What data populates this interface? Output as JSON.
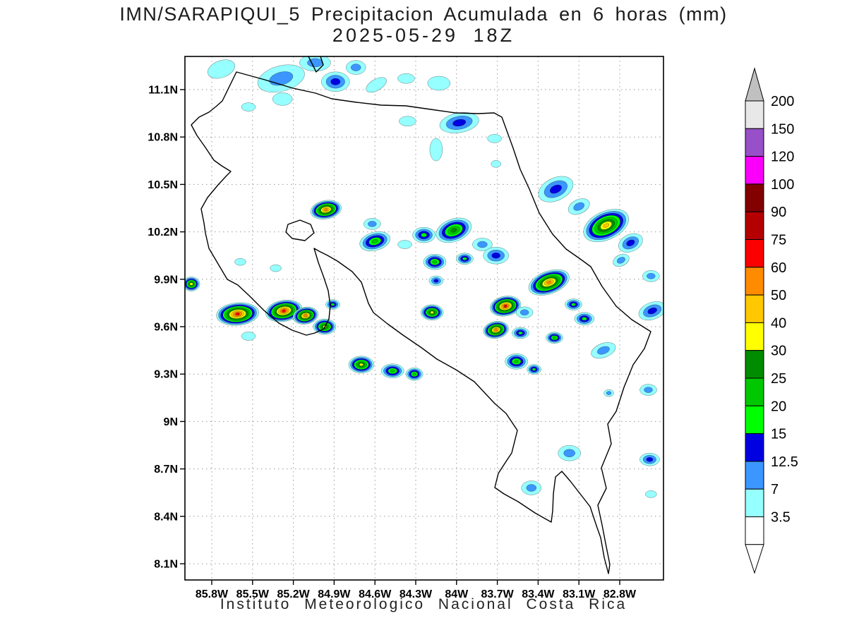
{
  "header": {
    "title": "IMN/SARAPIQUI_5 Precipitacion Acumulada en 6 horas (mm)",
    "subtitle": "2025-05-29 18Z"
  },
  "footer": {
    "text": "Instituto Meteorologico Nacional Costa Rica"
  },
  "axes": {
    "lat_labels": [
      "11.1N",
      "10.8N",
      "10.5N",
      "10.2N",
      "9.9N",
      "9.6N",
      "9.3N",
      "9N",
      "8.7N",
      "8.4N",
      "8.1N"
    ],
    "lon_labels": [
      "85.8W",
      "85.5W",
      "85.2W",
      "84.9W",
      "84.6W",
      "84.3W",
      "84W",
      "83.7W",
      "83.4W",
      "83.1W",
      "82.8W"
    ]
  },
  "colorbar": {
    "tick_labels": [
      "200",
      "150",
      "120",
      "100",
      "90",
      "75",
      "60",
      "50",
      "40",
      "30",
      "25",
      "20",
      "15",
      "12.5",
      "7",
      "3.5"
    ],
    "segment_colors_top_to_bottom": [
      "#E8E8E8",
      "#9850C8",
      "#FA00FA",
      "#820000",
      "#B40000",
      "#FA0000",
      "#FF8C00",
      "#FFC800",
      "#FFFF00",
      "#008C00",
      "#00C800",
      "#00FF00",
      "#0000E0",
      "#3C96FF",
      "#96FFFF",
      "#FFFFFF"
    ],
    "above_max_color": "#C0C0C0",
    "below_min_color": "#FFFFFF"
  },
  "chart_data": {
    "type": "heatmap",
    "title": "IMN/SARAPIQUI_5 Precipitacion Acumulada en 6 horas (mm)",
    "valid_time": "2025-05-29 18Z",
    "units": "mm",
    "region": "Costa Rica",
    "lat_axis": {
      "min": 8.1,
      "max": 11.1,
      "tick_step": 0.3,
      "unit": "N"
    },
    "lon_axis": {
      "min": 82.8,
      "max": 85.8,
      "tick_step": 0.3,
      "unit": "W"
    },
    "levels_mm": [
      3.5,
      7,
      12.5,
      15,
      20,
      25,
      30,
      40,
      50,
      60,
      75,
      90,
      100,
      120,
      150,
      200
    ],
    "level_colors": [
      "#96FFFF",
      "#3C96FF",
      "#0000E0",
      "#00FF00",
      "#00C800",
      "#008C00",
      "#FFFF00",
      "#FFC800",
      "#FF8C00",
      "#FA0000",
      "#B40000",
      "#820000",
      "#FA00FA",
      "#9850C8",
      "#E8E8E8",
      "#C0C0C0"
    ],
    "cell_format": [
      "lon_W",
      "lat_N",
      "peak_mm",
      "rx_px",
      "ry_px",
      "rotation_deg"
    ],
    "cells": [
      [
        85.73,
        11.23,
        5,
        20,
        12,
        -20
      ],
      [
        85.29,
        11.17,
        10,
        34,
        18,
        -15
      ],
      [
        85.28,
        11.04,
        5,
        14,
        9,
        0
      ],
      [
        85.04,
        11.27,
        10,
        22,
        12,
        0
      ],
      [
        84.89,
        11.15,
        14,
        20,
        14,
        0
      ],
      [
        84.74,
        11.24,
        10,
        14,
        10,
        0
      ],
      [
        84.59,
        11.13,
        5,
        16,
        8,
        -30
      ],
      [
        85.53,
        10.99,
        5,
        10,
        6,
        0
      ],
      [
        84.37,
        11.17,
        5,
        12,
        7,
        0
      ],
      [
        84.13,
        11.14,
        5,
        16,
        10,
        0
      ],
      [
        84.36,
        10.9,
        5,
        12,
        7,
        0
      ],
      [
        83.98,
        10.89,
        14,
        28,
        14,
        -10
      ],
      [
        83.72,
        10.79,
        5,
        10,
        6,
        0
      ],
      [
        84.15,
        10.72,
        5,
        9,
        16,
        0
      ],
      [
        83.71,
        10.63,
        5,
        7,
        5,
        0
      ],
      [
        83.27,
        10.47,
        14,
        26,
        16,
        -25
      ],
      [
        83.1,
        10.36,
        10,
        16,
        10,
        -25
      ],
      [
        82.9,
        10.24,
        45,
        34,
        20,
        -25
      ],
      [
        82.72,
        10.13,
        14,
        18,
        12,
        -25
      ],
      [
        82.79,
        10.02,
        10,
        12,
        8,
        -25
      ],
      [
        82.57,
        9.92,
        10,
        12,
        8,
        0
      ],
      [
        82.56,
        9.7,
        14,
        20,
        12,
        -20
      ],
      [
        84.96,
        10.34,
        55,
        22,
        13,
        -10
      ],
      [
        84.62,
        10.25,
        10,
        12,
        8,
        0
      ],
      [
        84.6,
        10.14,
        22,
        22,
        13,
        -15
      ],
      [
        84.38,
        10.12,
        5,
        10,
        6,
        0
      ],
      [
        84.24,
        10.18,
        18,
        16,
        11,
        0
      ],
      [
        84.02,
        10.21,
        28,
        26,
        16,
        -20
      ],
      [
        83.81,
        10.12,
        10,
        14,
        9,
        0
      ],
      [
        84.16,
        10.01,
        22,
        16,
        11,
        0
      ],
      [
        83.94,
        10.03,
        18,
        12,
        8,
        0
      ],
      [
        83.71,
        10.05,
        14,
        18,
        12,
        0
      ],
      [
        84.15,
        9.89,
        14,
        10,
        7,
        0
      ],
      [
        84.18,
        9.69,
        35,
        16,
        11,
        0
      ],
      [
        85.95,
        9.87,
        35,
        12,
        10,
        0
      ],
      [
        85.59,
        10.01,
        5,
        8,
        5,
        0
      ],
      [
        85.33,
        9.97,
        5,
        8,
        5,
        0
      ],
      [
        85.61,
        9.68,
        65,
        30,
        16,
        -5
      ],
      [
        85.27,
        9.7,
        65,
        26,
        15,
        -10
      ],
      [
        85.11,
        9.67,
        55,
        18,
        12,
        -10
      ],
      [
        84.97,
        9.6,
        35,
        16,
        11,
        0
      ],
      [
        84.91,
        9.74,
        18,
        10,
        7,
        0
      ],
      [
        85.53,
        9.54,
        5,
        10,
        6,
        0
      ],
      [
        83.32,
        9.88,
        55,
        30,
        16,
        -20
      ],
      [
        83.14,
        9.74,
        18,
        12,
        8,
        0
      ],
      [
        83.64,
        9.73,
        65,
        22,
        14,
        -10
      ],
      [
        83.5,
        9.69,
        10,
        12,
        8,
        0
      ],
      [
        83.71,
        9.58,
        55,
        18,
        12,
        -10
      ],
      [
        83.53,
        9.56,
        18,
        12,
        8,
        0
      ],
      [
        83.28,
        9.53,
        22,
        12,
        8,
        0
      ],
      [
        83.06,
        9.65,
        18,
        14,
        9,
        0
      ],
      [
        82.92,
        9.45,
        10,
        18,
        10,
        -20
      ],
      [
        84.7,
        9.36,
        35,
        18,
        12,
        0
      ],
      [
        84.47,
        9.32,
        22,
        16,
        10,
        0
      ],
      [
        84.31,
        9.3,
        22,
        12,
        9,
        0
      ],
      [
        83.56,
        9.38,
        22,
        16,
        11,
        0
      ],
      [
        83.43,
        9.33,
        18,
        10,
        7,
        0
      ],
      [
        82.59,
        9.2,
        10,
        12,
        8,
        0
      ],
      [
        82.88,
        9.18,
        10,
        7,
        5,
        0
      ],
      [
        83.17,
        8.8,
        10,
        16,
        11,
        0
      ],
      [
        82.58,
        8.76,
        14,
        14,
        9,
        0
      ],
      [
        83.45,
        8.58,
        10,
        14,
        10,
        0
      ],
      [
        82.57,
        8.54,
        5,
        8,
        5,
        0
      ]
    ]
  }
}
